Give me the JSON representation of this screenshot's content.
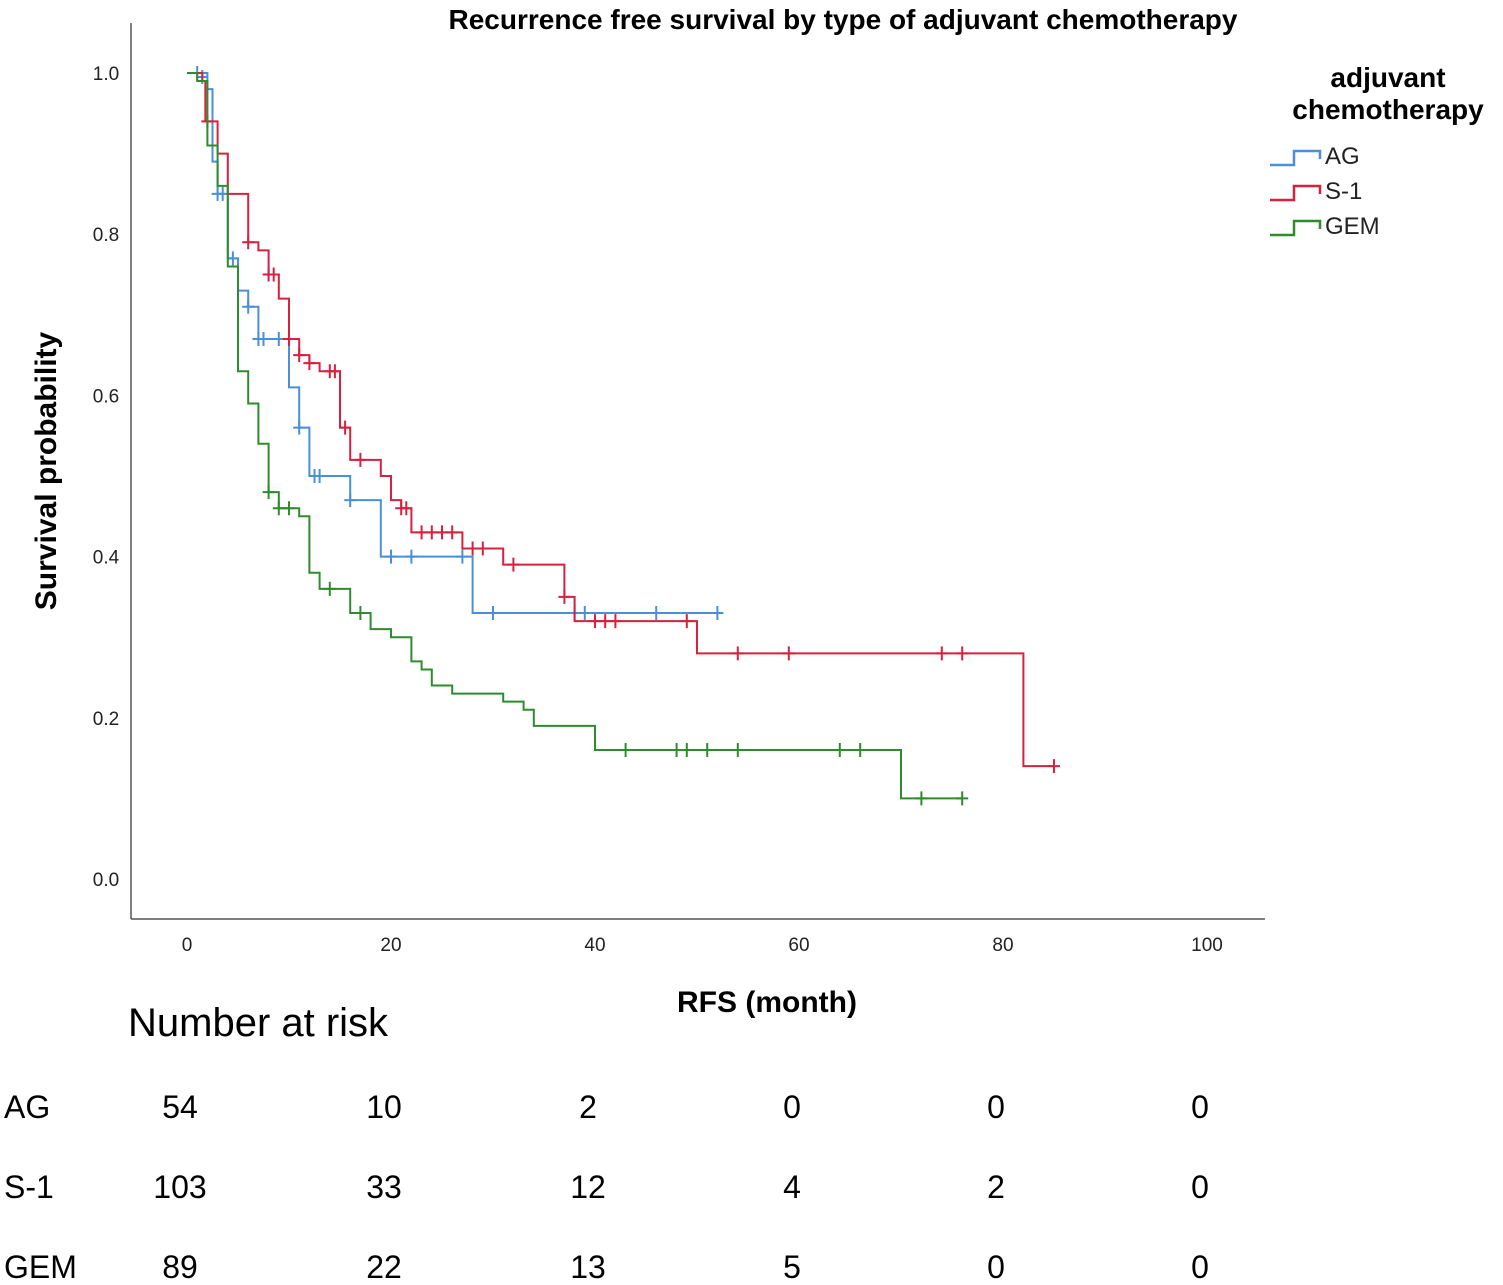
{
  "chart_data": {
    "type": "line",
    "subtype": "kaplan-meier",
    "title": "Recurrence free survival by type of adjuvant chemotherapy",
    "xlabel": "RFS (month)",
    "ylabel": "Survival probability",
    "xlim": [
      -5,
      105
    ],
    "ylim": [
      -0.05,
      1.05
    ],
    "x_ticks": [
      0,
      20,
      40,
      60,
      80,
      100
    ],
    "y_ticks": [
      0.0,
      0.2,
      0.4,
      0.6,
      0.8,
      1.0
    ],
    "x_tick_labels": [
      "0",
      "20",
      "40",
      "60",
      "80",
      "100"
    ],
    "y_tick_labels": [
      "0.0",
      "0.2",
      "0.4",
      "0.6",
      "0.8",
      "1.0"
    ],
    "legend": {
      "title_line1": "adjuvant",
      "title_line2": "chemotherapy",
      "placement": "top-right"
    },
    "series": [
      {
        "name": "AG",
        "color": "#4a90d9",
        "steps": [
          [
            0,
            1.0
          ],
          [
            2,
            0.98
          ],
          [
            2.5,
            0.89
          ],
          [
            3,
            0.85
          ],
          [
            4,
            0.77
          ],
          [
            5,
            0.73
          ],
          [
            6,
            0.71
          ],
          [
            7,
            0.67
          ],
          [
            10,
            0.61
          ],
          [
            11,
            0.56
          ],
          [
            12,
            0.5
          ],
          [
            16,
            0.47
          ],
          [
            19,
            0.4
          ],
          [
            28,
            0.33
          ],
          [
            52,
            0.33
          ]
        ],
        "censors": [
          [
            1,
            1.0
          ],
          [
            1.5,
            0.995
          ],
          [
            3,
            0.85
          ],
          [
            3.5,
            0.85
          ],
          [
            4.5,
            0.77
          ],
          [
            6,
            0.71
          ],
          [
            7,
            0.67
          ],
          [
            7.5,
            0.67
          ],
          [
            9,
            0.67
          ],
          [
            11,
            0.56
          ],
          [
            12.5,
            0.5
          ],
          [
            13,
            0.5
          ],
          [
            16,
            0.47
          ],
          [
            20,
            0.4
          ],
          [
            22,
            0.4
          ],
          [
            27,
            0.4
          ],
          [
            30,
            0.33
          ],
          [
            38,
            0.33
          ],
          [
            39,
            0.33
          ],
          [
            46,
            0.33
          ],
          [
            52,
            0.33
          ]
        ]
      },
      {
        "name": "S-1",
        "color": "#d6213f",
        "steps": [
          [
            0,
            1.0
          ],
          [
            1.5,
            0.99
          ],
          [
            1.8,
            0.94
          ],
          [
            3,
            0.9
          ],
          [
            4,
            0.85
          ],
          [
            6,
            0.79
          ],
          [
            7,
            0.78
          ],
          [
            8,
            0.75
          ],
          [
            9,
            0.72
          ],
          [
            10,
            0.67
          ],
          [
            11,
            0.65
          ],
          [
            12,
            0.64
          ],
          [
            13,
            0.63
          ],
          [
            15,
            0.56
          ],
          [
            16,
            0.52
          ],
          [
            19,
            0.5
          ],
          [
            20,
            0.47
          ],
          [
            21,
            0.46
          ],
          [
            22,
            0.43
          ],
          [
            27,
            0.41
          ],
          [
            31,
            0.39
          ],
          [
            37,
            0.35
          ],
          [
            38,
            0.32
          ],
          [
            50,
            0.28
          ],
          [
            82,
            0.14
          ],
          [
            85,
            0.14
          ]
        ],
        "censors": [
          [
            2,
            0.94
          ],
          [
            6,
            0.79
          ],
          [
            8,
            0.75
          ],
          [
            8.5,
            0.75
          ],
          [
            10,
            0.67
          ],
          [
            11,
            0.65
          ],
          [
            12,
            0.64
          ],
          [
            14,
            0.63
          ],
          [
            14.5,
            0.63
          ],
          [
            15.5,
            0.56
          ],
          [
            17,
            0.52
          ],
          [
            21,
            0.46
          ],
          [
            21.5,
            0.46
          ],
          [
            23,
            0.43
          ],
          [
            24,
            0.43
          ],
          [
            25,
            0.43
          ],
          [
            26,
            0.43
          ],
          [
            28,
            0.41
          ],
          [
            29,
            0.41
          ],
          [
            32,
            0.39
          ],
          [
            37,
            0.35
          ],
          [
            40,
            0.32
          ],
          [
            41,
            0.32
          ],
          [
            42,
            0.32
          ],
          [
            49,
            0.32
          ],
          [
            54,
            0.28
          ],
          [
            59,
            0.28
          ],
          [
            74,
            0.28
          ],
          [
            76,
            0.28
          ],
          [
            85,
            0.14
          ]
        ]
      },
      {
        "name": "GEM",
        "color": "#2e8b2e",
        "steps": [
          [
            0,
            1.0
          ],
          [
            1,
            0.99
          ],
          [
            2,
            0.91
          ],
          [
            3,
            0.86
          ],
          [
            4,
            0.76
          ],
          [
            5,
            0.63
          ],
          [
            6,
            0.59
          ],
          [
            7,
            0.54
          ],
          [
            8,
            0.48
          ],
          [
            9,
            0.46
          ],
          [
            11,
            0.45
          ],
          [
            12,
            0.38
          ],
          [
            13,
            0.36
          ],
          [
            16,
            0.33
          ],
          [
            18,
            0.31
          ],
          [
            20,
            0.3
          ],
          [
            22,
            0.27
          ],
          [
            23,
            0.26
          ],
          [
            24,
            0.24
          ],
          [
            26,
            0.23
          ],
          [
            31,
            0.22
          ],
          [
            33,
            0.21
          ],
          [
            34,
            0.19
          ],
          [
            40,
            0.16
          ],
          [
            70,
            0.1
          ],
          [
            76,
            0.1
          ]
        ],
        "censors": [
          [
            8,
            0.48
          ],
          [
            9,
            0.46
          ],
          [
            10,
            0.46
          ],
          [
            14,
            0.36
          ],
          [
            17,
            0.33
          ],
          [
            43,
            0.16
          ],
          [
            48,
            0.16
          ],
          [
            49,
            0.16
          ],
          [
            51,
            0.16
          ],
          [
            54,
            0.16
          ],
          [
            64,
            0.16
          ],
          [
            66,
            0.16
          ],
          [
            72,
            0.1
          ],
          [
            76,
            0.1
          ]
        ]
      }
    ]
  },
  "risk_table": {
    "title": "Number at risk",
    "rows": [
      {
        "label": "AG",
        "values": [
          "54",
          "10",
          "2",
          "0",
          "0",
          "0"
        ]
      },
      {
        "label": "S-1",
        "values": [
          "103",
          "33",
          "12",
          "4",
          "2",
          "0"
        ]
      },
      {
        "label": "GEM",
        "values": [
          "89",
          "22",
          "13",
          "5",
          "0",
          "0"
        ]
      }
    ]
  }
}
